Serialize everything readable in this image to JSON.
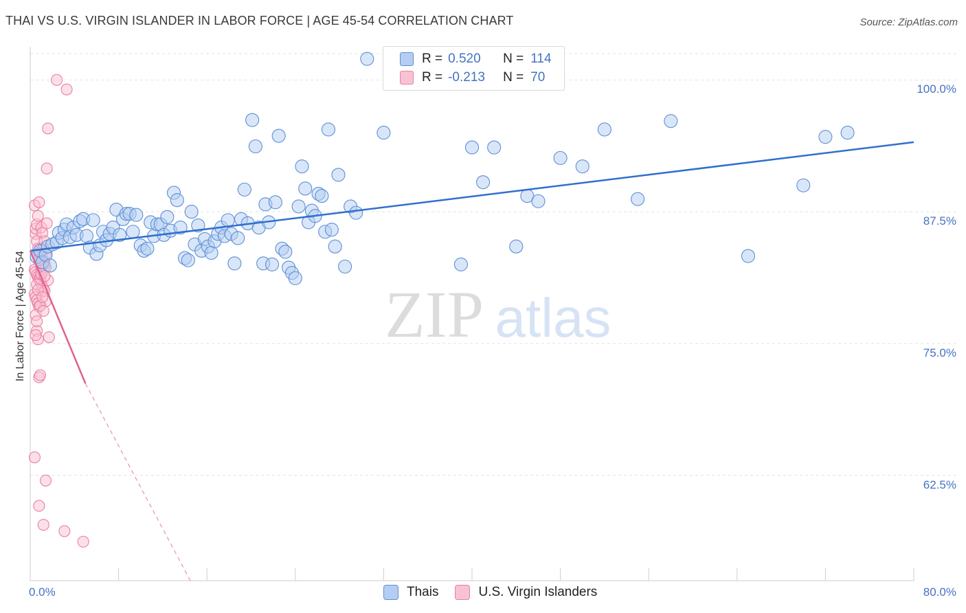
{
  "title": "THAI VS U.S. VIRGIN ISLANDER IN LABOR FORCE | AGE 45-54 CORRELATION CHART",
  "source": "Source: ZipAtlas.com",
  "watermark": {
    "zip": "ZIP",
    "atlas": "atlas"
  },
  "legend": {
    "rows": [
      {
        "r_label": "R =",
        "r_value": "0.520",
        "n_label": "N =",
        "n_value": "114"
      },
      {
        "r_label": "R =",
        "r_value": "-0.213",
        "n_label": "N =",
        "n_value": "70"
      }
    ]
  },
  "bottom_legend": {
    "items": [
      "Thais",
      "U.S. Virgin Islanders"
    ]
  },
  "colors": {
    "thai_fill": "#b4cdf2",
    "thai_stroke": "#5b8fd6",
    "thai_line": "#2f6fce",
    "usvi_fill": "#f9c2d2",
    "usvi_stroke": "#ea7fa3",
    "usvi_line": "#e06090",
    "grid": "#e2e2e2",
    "tick_label": "#4472c4"
  },
  "chart_data": {
    "type": "scatter",
    "title": "THAI VS U.S. VIRGIN ISLANDER IN LABOR FORCE | AGE 45-54 CORRELATION CHART",
    "xlabel": "",
    "ylabel": "In Labor Force | Age 45-54",
    "xlim": [
      0,
      80
    ],
    "ylim": [
      52.5,
      102.5
    ],
    "x_tick_labels": [
      "0.0%",
      "80.0%"
    ],
    "y_ticks": [
      62.5,
      75.0,
      87.5,
      100.0
    ],
    "y_tick_labels": [
      "62.5%",
      "75.0%",
      "87.5%",
      "100.0%"
    ],
    "grid": true,
    "legend_placement": "top-center",
    "series": [
      {
        "name": "Thais",
        "r": 0.52,
        "n": 114,
        "trend": {
          "x": [
            0,
            80
          ],
          "y": [
            83.8,
            94.1
          ]
        },
        "points": [
          [
            0.6,
            83.2
          ],
          [
            0.9,
            83.8
          ],
          [
            1.1,
            82.7
          ],
          [
            1.4,
            83.4
          ],
          [
            1.6,
            84.2
          ],
          [
            1.8,
            82.4
          ],
          [
            2.0,
            84.4
          ],
          [
            2.4,
            84.6
          ],
          [
            2.6,
            85.5
          ],
          [
            2.9,
            85.0
          ],
          [
            3.1,
            85.8
          ],
          [
            3.3,
            86.3
          ],
          [
            3.6,
            85.1
          ],
          [
            3.9,
            86.0
          ],
          [
            4.2,
            85.3
          ],
          [
            4.5,
            86.6
          ],
          [
            4.8,
            86.8
          ],
          [
            5.1,
            85.2
          ],
          [
            5.4,
            84.1
          ],
          [
            5.7,
            86.7
          ],
          [
            6.0,
            83.5
          ],
          [
            6.3,
            84.3
          ],
          [
            6.6,
            85.6
          ],
          [
            6.9,
            84.8
          ],
          [
            7.2,
            85.4
          ],
          [
            7.5,
            86.0
          ],
          [
            7.8,
            87.7
          ],
          [
            8.1,
            85.3
          ],
          [
            8.4,
            86.8
          ],
          [
            8.7,
            87.3
          ],
          [
            9.0,
            87.3
          ],
          [
            9.3,
            85.6
          ],
          [
            9.6,
            87.2
          ],
          [
            10.0,
            84.3
          ],
          [
            10.3,
            83.8
          ],
          [
            10.6,
            84.0
          ],
          [
            10.9,
            86.5
          ],
          [
            11.2,
            85.2
          ],
          [
            11.5,
            86.3
          ],
          [
            11.8,
            86.3
          ],
          [
            12.1,
            85.3
          ],
          [
            12.4,
            87.0
          ],
          [
            12.7,
            85.7
          ],
          [
            13.0,
            89.3
          ],
          [
            13.3,
            88.6
          ],
          [
            13.6,
            86.0
          ],
          [
            14.0,
            83.1
          ],
          [
            14.3,
            82.9
          ],
          [
            14.6,
            87.5
          ],
          [
            14.9,
            84.4
          ],
          [
            15.2,
            86.2
          ],
          [
            15.5,
            83.8
          ],
          [
            15.8,
            84.9
          ],
          [
            16.1,
            84.2
          ],
          [
            16.4,
            83.6
          ],
          [
            16.7,
            84.7
          ],
          [
            17.0,
            85.4
          ],
          [
            17.3,
            86.0
          ],
          [
            17.6,
            85.2
          ],
          [
            17.9,
            86.7
          ],
          [
            18.2,
            85.4
          ],
          [
            18.5,
            82.6
          ],
          [
            18.8,
            85.0
          ],
          [
            19.1,
            86.8
          ],
          [
            19.4,
            89.6
          ],
          [
            19.7,
            86.4
          ],
          [
            20.1,
            96.2
          ],
          [
            20.4,
            93.7
          ],
          [
            20.7,
            86.0
          ],
          [
            21.1,
            82.6
          ],
          [
            21.3,
            88.2
          ],
          [
            21.6,
            86.5
          ],
          [
            21.9,
            82.5
          ],
          [
            22.2,
            88.4
          ],
          [
            22.5,
            94.7
          ],
          [
            22.8,
            84.0
          ],
          [
            23.1,
            83.7
          ],
          [
            23.4,
            82.2
          ],
          [
            23.7,
            81.7
          ],
          [
            24.0,
            81.2
          ],
          [
            24.3,
            88.0
          ],
          [
            24.6,
            91.8
          ],
          [
            24.9,
            89.7
          ],
          [
            25.2,
            86.5
          ],
          [
            25.5,
            87.6
          ],
          [
            25.8,
            87.1
          ],
          [
            26.1,
            89.2
          ],
          [
            26.4,
            89.0
          ],
          [
            26.7,
            85.6
          ],
          [
            27.0,
            95.3
          ],
          [
            27.3,
            85.8
          ],
          [
            27.6,
            84.2
          ],
          [
            27.9,
            91.0
          ],
          [
            28.5,
            82.3
          ],
          [
            29.0,
            88.0
          ],
          [
            29.5,
            87.4
          ],
          [
            30.5,
            102.0
          ],
          [
            32.0,
            95.0
          ],
          [
            39.0,
            82.5
          ],
          [
            40.0,
            93.6
          ],
          [
            41.0,
            90.3
          ],
          [
            42.0,
            93.6
          ],
          [
            44.0,
            84.2
          ],
          [
            45.0,
            89.0
          ],
          [
            46.0,
            88.5
          ],
          [
            48.0,
            92.6
          ],
          [
            50.0,
            91.8
          ],
          [
            52.0,
            95.3
          ],
          [
            55.0,
            88.7
          ],
          [
            58.0,
            96.1
          ],
          [
            65.0,
            83.3
          ],
          [
            70.0,
            90.0
          ],
          [
            72.0,
            94.6
          ],
          [
            74.0,
            95.0
          ]
        ]
      },
      {
        "name": "U.S. Virgin Islanders",
        "r": -0.213,
        "n": 70,
        "trend": {
          "x": [
            0,
            5.0
          ],
          "y": [
            83.8,
            71.2
          ],
          "dashed_to": {
            "x": 14.5,
            "y": 52.5
          }
        },
        "points": [
          [
            0.4,
            88.1
          ],
          [
            0.5,
            85.4
          ],
          [
            0.6,
            84.7
          ],
          [
            0.7,
            84.0
          ],
          [
            0.8,
            83.6
          ],
          [
            0.9,
            83.3
          ],
          [
            1.0,
            83.0
          ],
          [
            1.1,
            82.8
          ],
          [
            1.2,
            82.5
          ],
          [
            1.3,
            82.3
          ],
          [
            0.4,
            82.0
          ],
          [
            0.5,
            81.8
          ],
          [
            0.6,
            81.5
          ],
          [
            0.7,
            81.3
          ],
          [
            0.8,
            81.1
          ],
          [
            0.9,
            80.9
          ],
          [
            1.0,
            80.7
          ],
          [
            1.1,
            80.4
          ],
          [
            1.2,
            80.2
          ],
          [
            1.3,
            80.0
          ],
          [
            0.4,
            79.7
          ],
          [
            0.5,
            79.4
          ],
          [
            0.6,
            79.1
          ],
          [
            0.7,
            78.8
          ],
          [
            0.8,
            78.5
          ],
          [
            0.9,
            81.2
          ],
          [
            1.0,
            82.1
          ],
          [
            1.1,
            83.1
          ],
          [
            1.2,
            84.1
          ],
          [
            1.3,
            82.6
          ],
          [
            0.5,
            85.9
          ],
          [
            0.6,
            86.3
          ],
          [
            0.7,
            87.1
          ],
          [
            0.8,
            88.4
          ],
          [
            1.0,
            86.0
          ],
          [
            1.1,
            85.5
          ],
          [
            1.3,
            84.7
          ],
          [
            1.5,
            86.4
          ],
          [
            1.7,
            75.6
          ],
          [
            1.4,
            79.0
          ],
          [
            0.5,
            77.7
          ],
          [
            0.6,
            76.2
          ],
          [
            0.7,
            75.4
          ],
          [
            0.8,
            71.8
          ],
          [
            0.9,
            72.0
          ],
          [
            1.0,
            82.4
          ],
          [
            1.2,
            83.9
          ],
          [
            1.4,
            82.2
          ],
          [
            1.6,
            81.0
          ],
          [
            0.9,
            78.6
          ],
          [
            0.4,
            64.2
          ],
          [
            1.4,
            62.0
          ],
          [
            0.8,
            59.6
          ],
          [
            1.2,
            57.8
          ],
          [
            3.1,
            57.2
          ],
          [
            4.8,
            56.2
          ],
          [
            2.4,
            100.0
          ],
          [
            3.3,
            99.1
          ],
          [
            1.6,
            95.4
          ],
          [
            1.5,
            91.6
          ],
          [
            0.6,
            80.6
          ],
          [
            0.7,
            80.1
          ],
          [
            0.8,
            82.9
          ],
          [
            1.0,
            81.6
          ],
          [
            1.1,
            79.4
          ],
          [
            1.2,
            78.1
          ],
          [
            0.5,
            75.8
          ],
          [
            0.6,
            77.1
          ],
          [
            1.3,
            81.4
          ],
          [
            1.4,
            83.5
          ]
        ]
      }
    ]
  }
}
